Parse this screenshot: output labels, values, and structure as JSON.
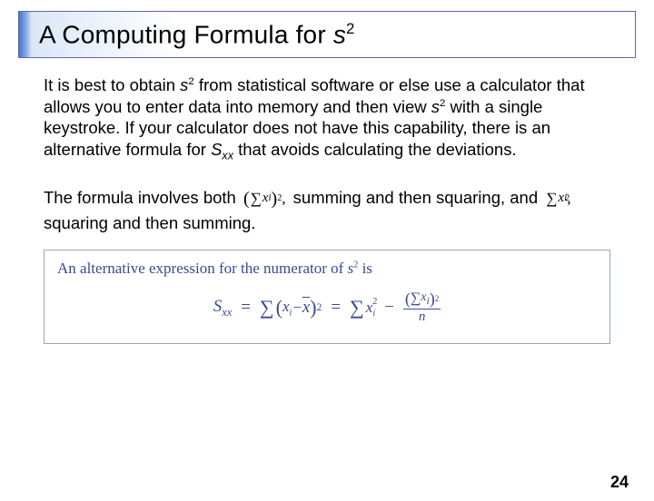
{
  "colors": {
    "border_frame": "#5a6aa6",
    "title_tab_gradient": [
      "#4a74c9",
      "#8ab0e8",
      "#dbe7f7"
    ],
    "title_fade_gradient": [
      "#dbe7f7",
      "#ffffff"
    ],
    "formula_border": "#9aa4c8",
    "formula_text": "#3a4a8f",
    "body_text": "#000000",
    "background": "#ffffff"
  },
  "typography": {
    "title_fontsize": 28,
    "body_fontsize": 18.5,
    "formula_fontsize": 19,
    "formula_header_fontsize": 17,
    "pagenum_fontsize": 18
  },
  "title": {
    "prefix": "A Computing Formula for ",
    "var": "s",
    "exp": "2"
  },
  "para1": {
    "t1": "It is best to obtain ",
    "var1": "s",
    "exp1": "2",
    "t2": " from statistical software or else use a calculator that allows you to enter data into memory and then view ",
    "var2": "s",
    "exp2": "2",
    "t3": " with a single keystroke. If your calculator does not have this capability, there is an alternative formula for ",
    "var3": "S",
    "sub3": "xx",
    "t4": " that avoids calculating the deviations."
  },
  "para2": {
    "t1": "The formula involves both ",
    "math1": {
      "lparen": "(",
      "sigma": "∑",
      "x": "x",
      "sub": "i",
      "rparen": ")",
      "sup": "2",
      "comma": ","
    },
    "t2": " summing and then squaring, and ",
    "math2": {
      "sigma": "∑",
      "x": "x",
      "sup": "2",
      "sub": "i",
      "comma": ","
    },
    "t3": " squaring and then summing."
  },
  "formula": {
    "header_t1": "An alternative expression for the numerator of ",
    "header_var": "s",
    "header_exp": "2",
    "header_t2": " is",
    "lhs_S": "S",
    "lhs_sub": "xx",
    "eq": "=",
    "minus": "−",
    "term1": {
      "sigma": "∑",
      "l": "(",
      "x": "x",
      "sub": "i",
      "m": " − ",
      "xbar": "x",
      "r": ")",
      "sup": "2"
    },
    "term2": {
      "sigma": "∑",
      "x": "x",
      "sup": "2",
      "sub": "i"
    },
    "term3_num": {
      "l": "(",
      "sigma": "∑",
      "x": "x",
      "sub": "i",
      "r": ")",
      "sup": "2"
    },
    "term3_den": "n"
  },
  "page_number": "24"
}
